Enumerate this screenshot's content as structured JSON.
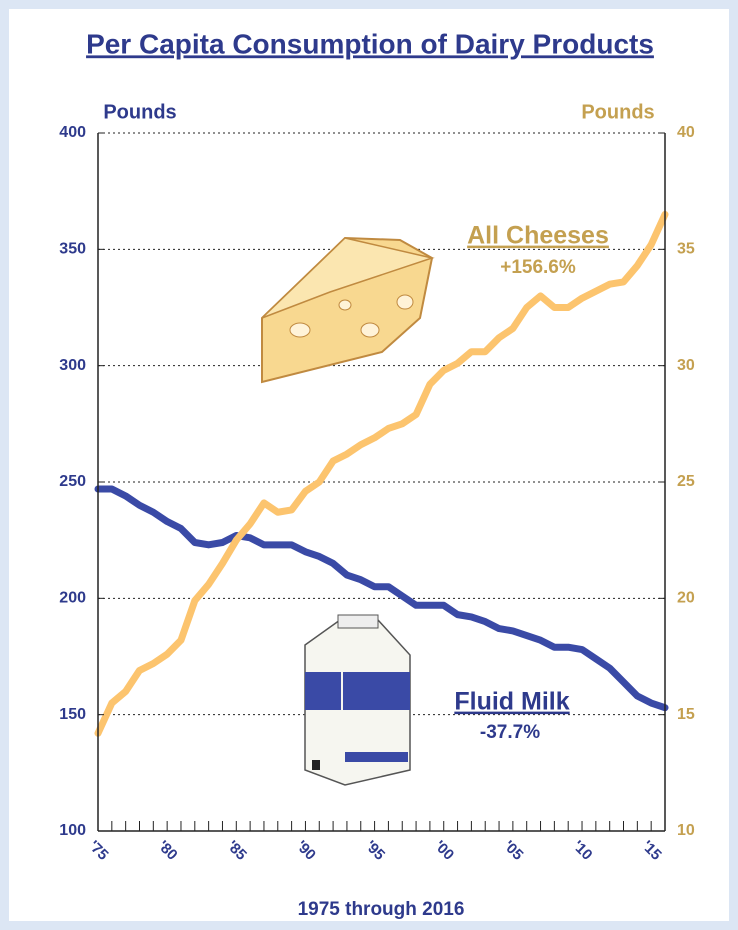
{
  "chart_data": {
    "type": "line",
    "title": "Per Capita Consumption of Dairy Products",
    "xlabel": "1975 through 2016",
    "ylabel": "Pounds",
    "y2label": "Pounds",
    "x": [
      1975,
      1976,
      1977,
      1978,
      1979,
      1980,
      1981,
      1982,
      1983,
      1984,
      1985,
      1986,
      1987,
      1988,
      1989,
      1990,
      1991,
      1992,
      1993,
      1994,
      1995,
      1996,
      1997,
      1998,
      1999,
      2000,
      2001,
      2002,
      2003,
      2004,
      2005,
      2006,
      2007,
      2008,
      2009,
      2010,
      2011,
      2012,
      2013,
      2014,
      2015,
      2016
    ],
    "series": [
      {
        "name": "Fluid Milk",
        "color": "#3a4aa6",
        "axis": "y",
        "values": [
          247,
          247,
          244,
          240,
          237,
          233,
          230,
          224,
          223,
          224,
          227,
          226,
          223,
          223,
          223,
          220,
          218,
          215,
          210,
          208,
          205,
          205,
          201,
          197,
          197,
          197,
          193,
          192,
          190,
          187,
          186,
          184,
          182,
          179,
          179,
          178,
          174,
          170,
          164,
          158,
          155,
          153
        ]
      },
      {
        "name": "All Cheeses",
        "color": "#fcc46e",
        "axis": "y2",
        "values": [
          14.2,
          15.5,
          16.0,
          16.9,
          17.2,
          17.6,
          18.2,
          19.9,
          20.6,
          21.5,
          22.5,
          23.2,
          24.1,
          23.7,
          23.8,
          24.6,
          25.0,
          25.9,
          26.2,
          26.6,
          26.9,
          27.3,
          27.5,
          27.9,
          29.2,
          29.8,
          30.1,
          30.6,
          30.6,
          31.2,
          31.6,
          32.5,
          33.0,
          32.5,
          32.5,
          32.9,
          33.2,
          33.5,
          33.6,
          34.3,
          35.2,
          36.5
        ]
      }
    ],
    "annotations": [
      "-37.7%",
      "+156.6%"
    ],
    "xlim": [
      1975,
      2016
    ],
    "xticks": [
      {
        "value": 1975,
        "label": "'75"
      },
      {
        "value": 1976,
        "label": null
      },
      {
        "value": 1977,
        "label": null
      },
      {
        "value": 1978,
        "label": null
      },
      {
        "value": 1979,
        "label": null
      },
      {
        "value": 1980,
        "label": "'80"
      },
      {
        "value": 1981,
        "label": null
      },
      {
        "value": 1982,
        "label": null
      },
      {
        "value": 1983,
        "label": null
      },
      {
        "value": 1984,
        "label": null
      },
      {
        "value": 1985,
        "label": "'85"
      },
      {
        "value": 1986,
        "label": null
      },
      {
        "value": 1987,
        "label": null
      },
      {
        "value": 1988,
        "label": null
      },
      {
        "value": 1989,
        "label": null
      },
      {
        "value": 1990,
        "label": "'90"
      },
      {
        "value": 1991,
        "label": null
      },
      {
        "value": 1992,
        "label": null
      },
      {
        "value": 1993,
        "label": null
      },
      {
        "value": 1994,
        "label": null
      },
      {
        "value": 1995,
        "label": "'95"
      },
      {
        "value": 1996,
        "label": null
      },
      {
        "value": 1997,
        "label": null
      },
      {
        "value": 1998,
        "label": null
      },
      {
        "value": 1999,
        "label": null
      },
      {
        "value": 2000,
        "label": "'00"
      },
      {
        "value": 2001,
        "label": null
      },
      {
        "value": 2002,
        "label": null
      },
      {
        "value": 2003,
        "label": null
      },
      {
        "value": 2004,
        "label": null
      },
      {
        "value": 2005,
        "label": "'05"
      },
      {
        "value": 2006,
        "label": null
      },
      {
        "value": 2007,
        "label": null
      },
      {
        "value": 2008,
        "label": null
      },
      {
        "value": 2009,
        "label": null
      },
      {
        "value": 2010,
        "label": "'10"
      },
      {
        "value": 2011,
        "label": null
      },
      {
        "value": 2012,
        "label": null
      },
      {
        "value": 2013,
        "label": null
      },
      {
        "value": 2014,
        "label": null
      },
      {
        "value": 2015,
        "label": "'15"
      },
      {
        "value": 2016,
        "label": null
      }
    ],
    "ylim": [
      100,
      400
    ],
    "yticks": [
      100,
      150,
      200,
      250,
      300,
      350,
      400
    ],
    "y2lim": [
      10,
      40
    ],
    "y2ticks": [
      10,
      15,
      20,
      25,
      30,
      35,
      40
    ],
    "grid": true
  }
}
